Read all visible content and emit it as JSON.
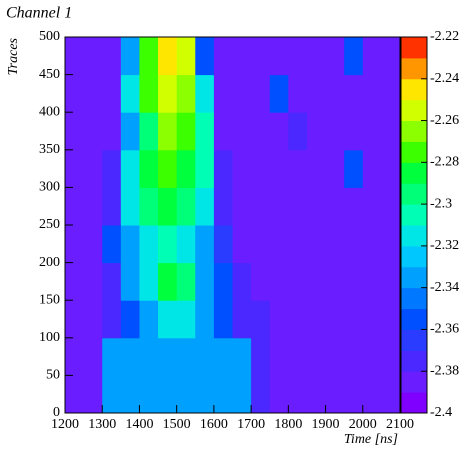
{
  "chart_data": {
    "type": "heatmap",
    "title": "Channel 1",
    "x_label": "Time [ns]",
    "y_label": "Traces",
    "xbins": [
      1200,
      1250,
      1300,
      1350,
      1400,
      1450,
      1500,
      1550,
      1600,
      1650,
      1700,
      1750,
      1800,
      1850,
      1900,
      1950,
      2000,
      2050,
      2100
    ],
    "ybins": [
      0,
      50,
      100,
      150,
      200,
      250,
      300,
      350,
      400,
      450,
      500
    ],
    "z": [
      [
        -2.385,
        -2.385,
        -2.33,
        -2.33,
        -2.33,
        -2.33,
        -2.33,
        -2.33,
        -2.33,
        -2.33,
        -2.38,
        -2.385,
        -2.385,
        -2.385,
        -2.385,
        -2.385,
        -2.385,
        -2.385
      ],
      [
        -2.385,
        -2.385,
        -2.34,
        -2.34,
        -2.34,
        -2.34,
        -2.34,
        -2.34,
        -2.34,
        -2.34,
        -2.37,
        -2.385,
        -2.385,
        -2.385,
        -2.385,
        -2.385,
        -2.385,
        -2.385
      ],
      [
        -2.385,
        -2.385,
        -2.37,
        -2.35,
        -2.33,
        -2.32,
        -2.32,
        -2.34,
        -2.36,
        -2.37,
        -2.38,
        -2.385,
        -2.385,
        -2.385,
        -2.385,
        -2.385,
        -2.385,
        -2.385
      ],
      [
        -2.385,
        -2.385,
        -2.37,
        -2.34,
        -2.32,
        -2.29,
        -2.3,
        -2.33,
        -2.36,
        -2.375,
        -2.385,
        -2.385,
        -2.385,
        -2.385,
        -2.385,
        -2.385,
        -2.385,
        -2.385
      ],
      [
        -2.385,
        -2.385,
        -2.36,
        -2.33,
        -2.32,
        -2.31,
        -2.32,
        -2.34,
        -2.365,
        -2.385,
        -2.385,
        -2.385,
        -2.385,
        -2.385,
        -2.385,
        -2.385,
        -2.385,
        -2.385
      ],
      [
        -2.385,
        -2.385,
        -2.37,
        -2.32,
        -2.3,
        -2.29,
        -2.3,
        -2.32,
        -2.37,
        -2.385,
        -2.385,
        -2.385,
        -2.385,
        -2.385,
        -2.385,
        -2.385,
        -2.385,
        -2.385
      ],
      [
        -2.385,
        -2.385,
        -2.375,
        -2.32,
        -2.29,
        -2.28,
        -2.29,
        -2.31,
        -2.37,
        -2.385,
        -2.385,
        -2.385,
        -2.385,
        -2.385,
        -2.385,
        -2.36,
        -2.385,
        -2.385
      ],
      [
        -2.385,
        -2.385,
        -2.385,
        -2.33,
        -2.3,
        -2.27,
        -2.28,
        -2.31,
        -2.385,
        -2.385,
        -2.385,
        -2.385,
        -2.37,
        -2.385,
        -2.385,
        -2.385,
        -2.385,
        -2.385
      ],
      [
        -2.385,
        -2.385,
        -2.385,
        -2.32,
        -2.28,
        -2.26,
        -2.27,
        -2.32,
        -2.385,
        -2.385,
        -2.385,
        -2.36,
        -2.385,
        -2.385,
        -2.385,
        -2.385,
        -2.385,
        -2.385
      ],
      [
        -2.385,
        -2.385,
        -2.385,
        -2.34,
        -2.28,
        -2.24,
        -2.26,
        -2.35,
        -2.385,
        -2.385,
        -2.385,
        -2.385,
        -2.385,
        -2.385,
        -2.385,
        -2.36,
        -2.385,
        -2.385
      ]
    ],
    "xlim": [
      1200,
      2100
    ],
    "xticks": [
      1200,
      1300,
      1400,
      1500,
      1600,
      1700,
      1800,
      1900,
      2000,
      2100
    ],
    "ylim": [
      0,
      500
    ],
    "yticks": [
      0,
      50,
      100,
      150,
      200,
      250,
      300,
      350,
      400,
      450,
      500
    ],
    "zlim": [
      -2.4,
      -2.22
    ],
    "zticks": [
      -2.22,
      -2.24,
      -2.26,
      -2.28,
      -2.3,
      -2.32,
      -2.34,
      -2.36,
      -2.38,
      -2.4
    ],
    "colors": [
      "#8000ff",
      "#6a1eff",
      "#4a28ff",
      "#2a3cff",
      "#0050ff",
      "#0078ff",
      "#00a0ff",
      "#00c8ff",
      "#00e6e6",
      "#00ffb4",
      "#00ff78",
      "#00ff3c",
      "#3cff00",
      "#8cff00",
      "#d2ff00",
      "#ffe600",
      "#ff9600",
      "#ff3200"
    ]
  }
}
